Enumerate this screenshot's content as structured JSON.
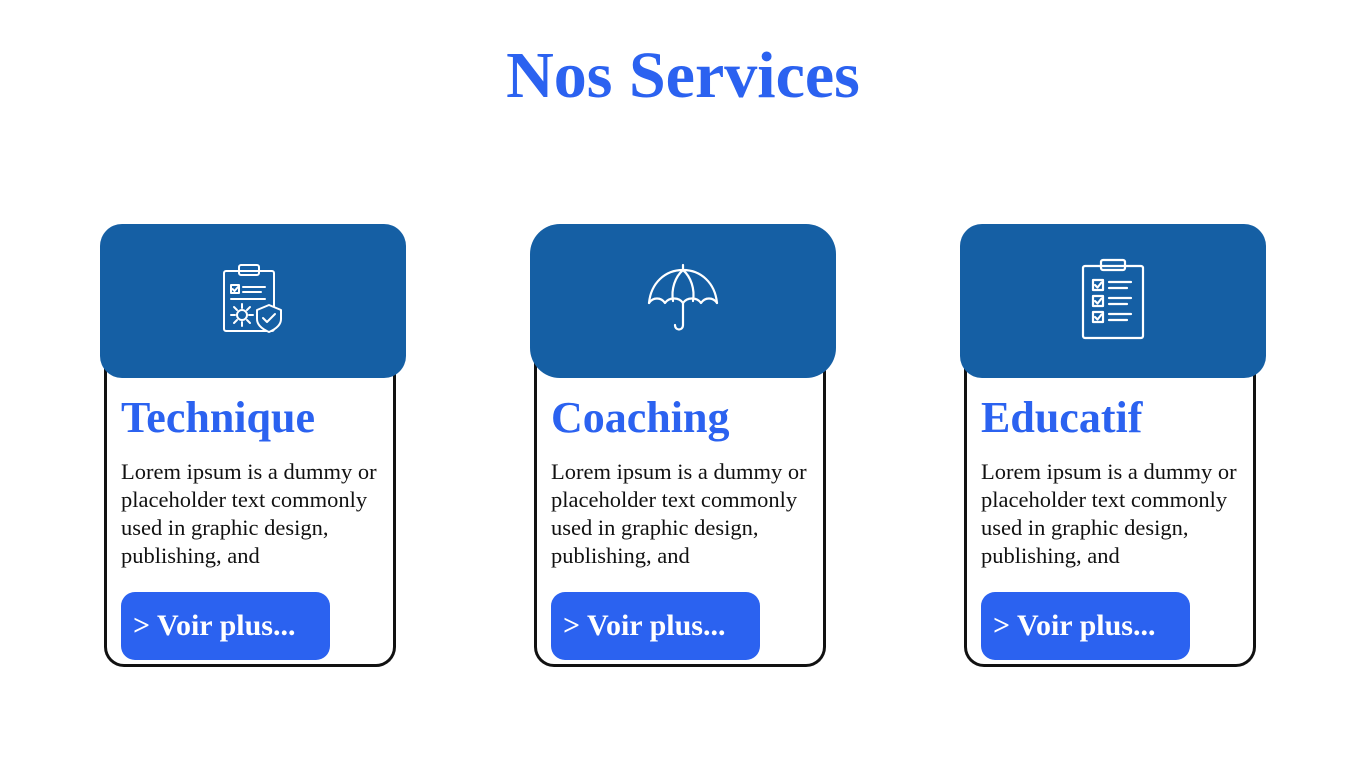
{
  "page": {
    "title": "Nos Services"
  },
  "cards": [
    {
      "icon": "clipboard-gear-shield-icon",
      "title": "Technique",
      "description": "Lorem ipsum is a dummy or placeholder text commonly used in graphic design, publishing, and",
      "button_label": "> Voir plus..."
    },
    {
      "icon": "umbrella-icon",
      "title": "Coaching",
      "description": "Lorem ipsum is a dummy or placeholder text commonly used in graphic design, publishing, and",
      "button_label": "> Voir plus..."
    },
    {
      "icon": "checklist-clipboard-icon",
      "title": "Educatif",
      "description": "Lorem ipsum is a dummy or placeholder text commonly used in graphic design, publishing, and",
      "button_label": "> Voir plus..."
    }
  ],
  "colors": {
    "accent": "#2b62f0",
    "header": "#155fa4",
    "border": "#111111",
    "background": "#ffffff"
  }
}
